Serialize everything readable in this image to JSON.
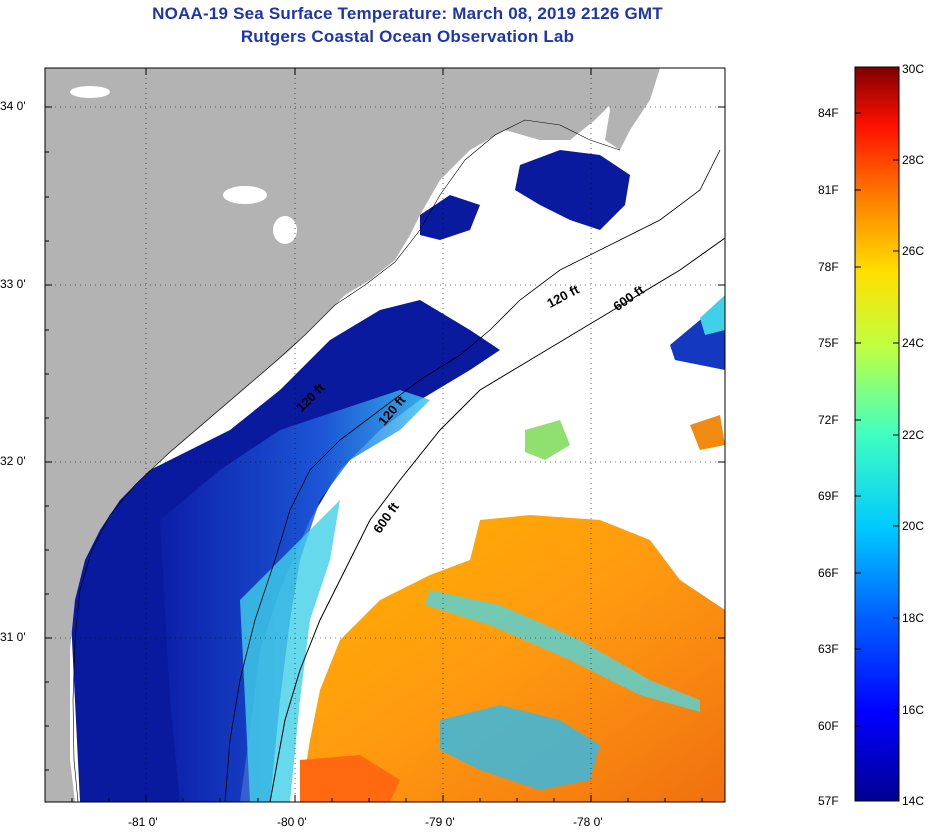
{
  "title": {
    "line1": "NOAA-19 Sea Surface Temperature:  March 08, 2019 2126 GMT",
    "line2": "Rutgers Coastal Ocean Observation Lab"
  },
  "map": {
    "lat_labels": [
      "34 0'",
      "33 0'",
      "32 0'",
      "31 0'"
    ],
    "lon_labels": [
      "-81 0'",
      "-80 0'",
      "-79 0'",
      "-78 0'"
    ],
    "isobaths": [
      {
        "label": "120 ft"
      },
      {
        "label": "600 ft"
      },
      {
        "label": "600 ft"
      },
      {
        "label": "120 ft"
      },
      {
        "label": "120 ft"
      }
    ],
    "colors": {
      "land": "#b3b3b3",
      "cloud": "#ffffff",
      "cold": "#0a1a9e",
      "cool": "#1f6fe0",
      "mid": "#38c8e8",
      "warm": "#f2a21a",
      "hot": "#f07a12"
    }
  },
  "colorbar": {
    "celsius_labels": [
      "30C",
      "28C",
      "26C",
      "24C",
      "22C",
      "20C",
      "18C",
      "16C",
      "14C"
    ],
    "fahrenheit_labels": [
      "84F",
      "81F",
      "78F",
      "75F",
      "72F",
      "69F",
      "66F",
      "63F",
      "60F",
      "57F"
    ],
    "range_c": [
      14,
      30
    ]
  }
}
